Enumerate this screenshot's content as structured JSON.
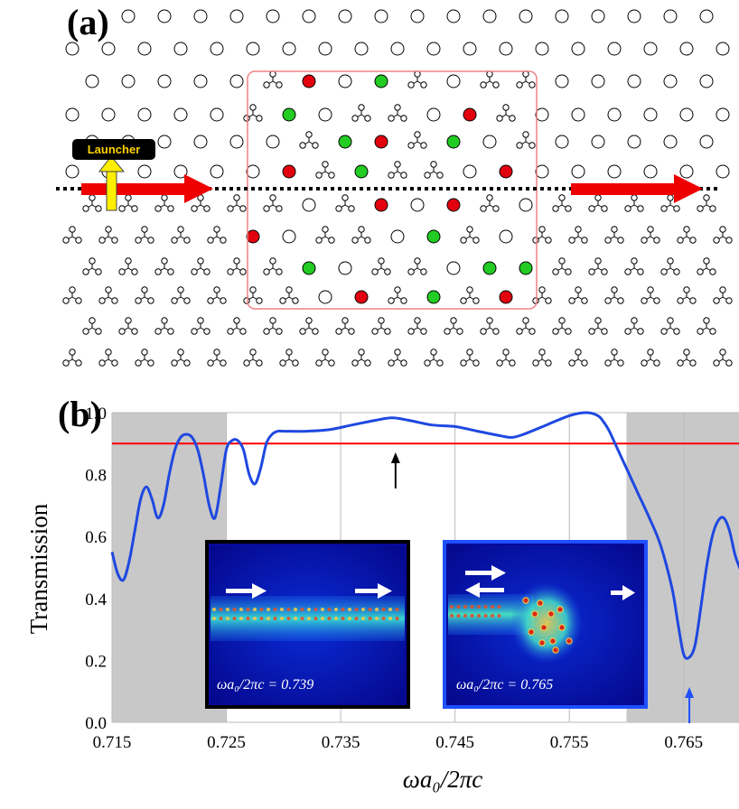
{
  "panel_a": {
    "label": "(a)",
    "launcher_label": "Launcher",
    "colors": {
      "red_rod": "#e3000f",
      "green_rod": "#22cc22",
      "arrow": "#ee0000",
      "launcher_arrow": "#ffee00",
      "box": "#f08080"
    }
  },
  "panel_b": {
    "label": "(b)",
    "insets": [
      {
        "label": "ωa₀/2πc = 0.739",
        "border_color": "#000000"
      },
      {
        "label": "ωa₀/2πc = 0.765",
        "border_color": "#1e50ff"
      }
    ]
  },
  "chart_data": {
    "type": "line",
    "xlabel": "ωa₀/2πc",
    "ylabel": "Transmission",
    "xlim": [
      0.715,
      0.77
    ],
    "ylim": [
      0.0,
      1.0
    ],
    "x_ticks": [
      "0.715",
      "0.725",
      "0.735",
      "0.745",
      "0.755",
      "0.765"
    ],
    "y_ticks": [
      "0.0",
      "0.2",
      "0.4",
      "0.6",
      "0.8",
      "1.0"
    ],
    "grid": "vertical",
    "threshold_line": {
      "y": 0.9,
      "color": "#ff0000"
    },
    "shaded_bands": [
      [
        0.715,
        0.725
      ],
      [
        0.76,
        0.77
      ]
    ],
    "markers": [
      {
        "x": 0.7398,
        "color": "#000000",
        "direction": "up"
      },
      {
        "x": 0.7655,
        "color": "#1e50ff",
        "direction": "up"
      }
    ],
    "series": [
      {
        "color": "#1f48e0",
        "x": [
          0.715,
          0.7155,
          0.716,
          0.7165,
          0.717,
          0.7175,
          0.718,
          0.7185,
          0.719,
          0.7195,
          0.72,
          0.7205,
          0.721,
          0.7215,
          0.722,
          0.7225,
          0.723,
          0.7235,
          0.724,
          0.7245,
          0.725,
          0.7255,
          0.726,
          0.7265,
          0.727,
          0.7275,
          0.728,
          0.7285,
          0.729,
          0.7295,
          0.73,
          0.732,
          0.734,
          0.736,
          0.738,
          0.7395,
          0.741,
          0.743,
          0.745,
          0.747,
          0.749,
          0.75,
          0.751,
          0.753,
          0.755,
          0.7565,
          0.7575,
          0.758,
          0.7585,
          0.759,
          0.7595,
          0.76,
          0.761,
          0.762,
          0.763,
          0.764,
          0.7645,
          0.765,
          0.7655,
          0.766,
          0.7665,
          0.767,
          0.7675,
          0.768,
          0.7685,
          0.769,
          0.7695,
          0.77
        ],
        "y": [
          0.55,
          0.48,
          0.46,
          0.52,
          0.62,
          0.72,
          0.76,
          0.72,
          0.66,
          0.7,
          0.8,
          0.88,
          0.92,
          0.93,
          0.92,
          0.88,
          0.8,
          0.7,
          0.66,
          0.76,
          0.88,
          0.91,
          0.91,
          0.88,
          0.8,
          0.77,
          0.82,
          0.9,
          0.93,
          0.94,
          0.94,
          0.94,
          0.945,
          0.96,
          0.975,
          0.983,
          0.975,
          0.96,
          0.955,
          0.94,
          0.925,
          0.92,
          0.93,
          0.96,
          0.99,
          1.0,
          0.99,
          0.97,
          0.94,
          0.9,
          0.86,
          0.82,
          0.74,
          0.66,
          0.57,
          0.43,
          0.32,
          0.22,
          0.21,
          0.25,
          0.37,
          0.5,
          0.6,
          0.65,
          0.66,
          0.62,
          0.54,
          0.49
        ]
      }
    ]
  }
}
